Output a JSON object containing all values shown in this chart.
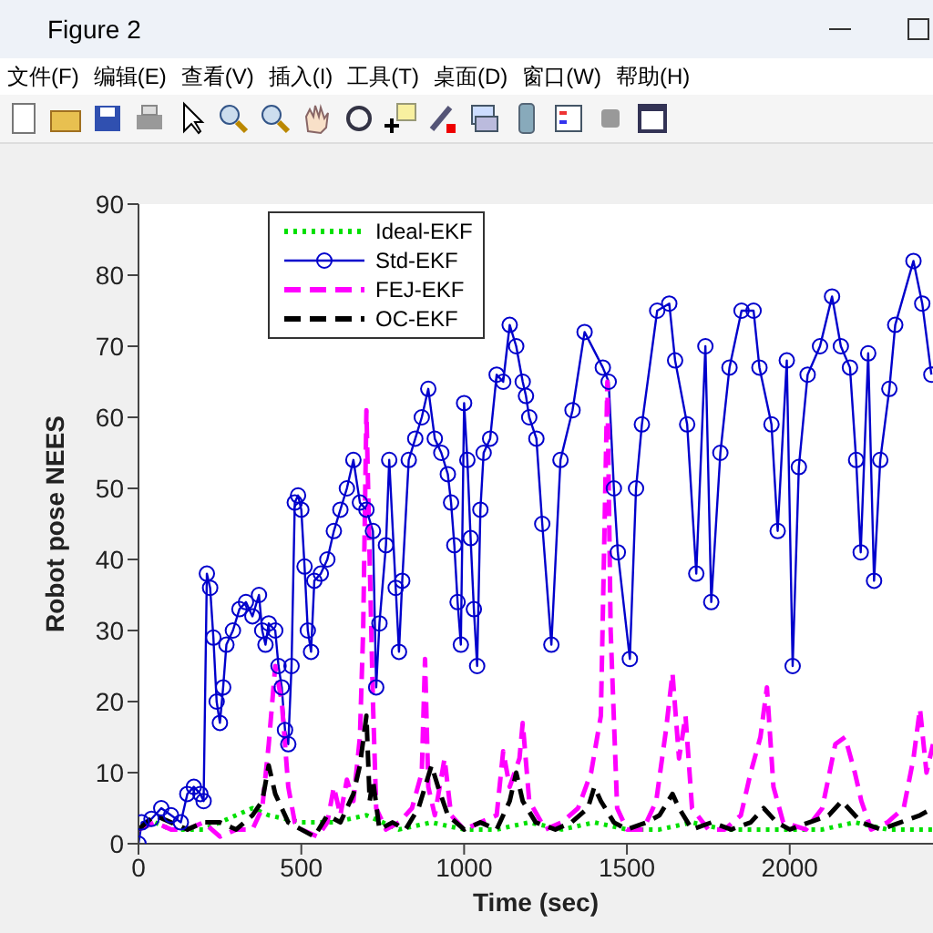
{
  "chart_data": {
    "type": "line",
    "xlabel": "Time (sec)",
    "ylabel": "Robot pose NEES",
    "annotations": [
      "Figure 2",
      "文件(F)",
      "编辑(E)",
      "查看(V)",
      "插入(I)",
      "工具(T)",
      "桌面(D)",
      "窗口(W)",
      "帮助(H)"
    ],
    "xlim": [
      0,
      2440
    ],
    "ylim": [
      0,
      90
    ],
    "xticks": [
      0,
      500,
      1000,
      1500,
      2000
    ],
    "yticks": [
      0,
      10,
      20,
      30,
      40,
      50,
      60,
      70,
      80,
      90
    ],
    "grid": false,
    "legend": "top left",
    "series": [
      {
        "name": "Ideal-EKF",
        "color": "#00e000",
        "line_style": "dotted",
        "marker": "none",
        "x": [
          0,
          50,
          100,
          200,
          300,
          350,
          400,
          500,
          600,
          700,
          800,
          900,
          1000,
          1100,
          1200,
          1300,
          1400,
          1500,
          1600,
          1700,
          1800,
          1900,
          2000,
          2100,
          2200,
          2300,
          2440
        ],
        "values": [
          2,
          3,
          2,
          2,
          4,
          5,
          4,
          3,
          3,
          4,
          2,
          3,
          2,
          2,
          3,
          2,
          3,
          2,
          2,
          3,
          2,
          2,
          2,
          2,
          3,
          2,
          2
        ]
      },
      {
        "name": "Std-EKF",
        "color": "#0000cc",
        "line_style": "solid",
        "marker": "circle",
        "x": [
          0,
          10,
          40,
          70,
          100,
          130,
          150,
          170,
          190,
          200,
          210,
          220,
          230,
          240,
          250,
          260,
          270,
          290,
          310,
          330,
          350,
          370,
          380,
          390,
          400,
          420,
          430,
          440,
          450,
          460,
          470,
          480,
          490,
          500,
          510,
          520,
          530,
          540,
          560,
          580,
          600,
          620,
          640,
          660,
          680,
          700,
          720,
          730,
          740,
          760,
          770,
          790,
          800,
          810,
          830,
          850,
          870,
          890,
          910,
          930,
          950,
          960,
          970,
          980,
          990,
          1000,
          1010,
          1020,
          1030,
          1040,
          1050,
          1060,
          1080,
          1100,
          1120,
          1140,
          1160,
          1180,
          1190,
          1200,
          1222,
          1240,
          1268,
          1296,
          1333,
          1370,
          1426,
          1444,
          1460,
          1472,
          1509,
          1528,
          1546,
          1593,
          1630,
          1648,
          1685,
          1713,
          1741,
          1759,
          1787,
          1815,
          1852,
          1889,
          1907,
          1944,
          1963,
          1991,
          2009,
          2028,
          2055,
          2093,
          2130,
          2157,
          2185,
          2204,
          2218,
          2241,
          2259,
          2278,
          2306,
          2324,
          2380,
          2407,
          2435
        ],
        "values": [
          0,
          3,
          3.5,
          5,
          4,
          3,
          7,
          8,
          7,
          6,
          38,
          36,
          29,
          20,
          17,
          22,
          28,
          30,
          33,
          34,
          32,
          35,
          30,
          28,
          31,
          30,
          25,
          22,
          16,
          14,
          25,
          48,
          49,
          47,
          39,
          30,
          27,
          37,
          38,
          40,
          44,
          47,
          50,
          54,
          48,
          47,
          44,
          22,
          31,
          42,
          54,
          36,
          27,
          37,
          54,
          57,
          60,
          64,
          57,
          55,
          52,
          48,
          42,
          34,
          28,
          62,
          54,
          43,
          33,
          25,
          47,
          55,
          57,
          66,
          65,
          73,
          70,
          65,
          63,
          60,
          57,
          45,
          28,
          54,
          61,
          72,
          67,
          65,
          50,
          41,
          26,
          50,
          59,
          75,
          76,
          68,
          59,
          38,
          70,
          34,
          55,
          67,
          75,
          75,
          67,
          59,
          44,
          68,
          25,
          53,
          66,
          70,
          77,
          70,
          67,
          54,
          41,
          69,
          37,
          54,
          64,
          73,
          82,
          76,
          66
        ]
      },
      {
        "name": "FEJ-EKF",
        "color": "#ff00ff",
        "line_style": "dashed",
        "marker": "none",
        "x": [
          0,
          50,
          100,
          150,
          200,
          250,
          300,
          350,
          380,
          400,
          420,
          440,
          460,
          480,
          500,
          550,
          580,
          600,
          620,
          640,
          660,
          680,
          690,
          700,
          710,
          720,
          730,
          760,
          800,
          840,
          870,
          880,
          890,
          910,
          940,
          960,
          1000,
          1050,
          1100,
          1120,
          1140,
          1170,
          1180,
          1200,
          1250,
          1300,
          1350,
          1390,
          1420,
          1440,
          1450,
          1470,
          1500,
          1550,
          1590,
          1620,
          1640,
          1660,
          1680,
          1700,
          1750,
          1800,
          1850,
          1880,
          1910,
          1930,
          1950,
          1980,
          2050,
          2100,
          2140,
          2170,
          2200,
          2220,
          2250,
          2300,
          2350,
          2380,
          2400,
          2420,
          2440
        ],
        "values": [
          2,
          3,
          2,
          2,
          3,
          1,
          2,
          2,
          5,
          14,
          25,
          20,
          8,
          3,
          2,
          1,
          3,
          8,
          4,
          9,
          6,
          15,
          30,
          61,
          40,
          20,
          5,
          2,
          3,
          5,
          10,
          26,
          8,
          4,
          12,
          4,
          2,
          3,
          4,
          13,
          8,
          12,
          17,
          6,
          2,
          3,
          5,
          10,
          18,
          65,
          30,
          5,
          2,
          2,
          6,
          16,
          24,
          12,
          18,
          5,
          2,
          2,
          4,
          10,
          15,
          22,
          8,
          3,
          2,
          5,
          14,
          15,
          10,
          6,
          2,
          3,
          5,
          12,
          19,
          10,
          14
        ]
      },
      {
        "name": "OC-EKF",
        "color": "#000000",
        "line_style": "dashed",
        "marker": "none",
        "x": [
          0,
          50,
          100,
          150,
          200,
          250,
          300,
          350,
          380,
          400,
          420,
          440,
          460,
          500,
          540,
          580,
          620,
          660,
          680,
          700,
          710,
          720,
          740,
          780,
          820,
          860,
          900,
          920,
          950,
          1000,
          1050,
          1100,
          1140,
          1160,
          1180,
          1220,
          1280,
          1330,
          1380,
          1400,
          1420,
          1460,
          1500,
          1560,
          1600,
          1640,
          1660,
          1700,
          1760,
          1820,
          1880,
          1920,
          1960,
          2000,
          2060,
          2120,
          2160,
          2180,
          2220,
          2280,
          2340,
          2400,
          2440
        ],
        "values": [
          2,
          4,
          3,
          2,
          3,
          3,
          2,
          4,
          6,
          11,
          7,
          5,
          3,
          2,
          1,
          4,
          3,
          7,
          11,
          18,
          6,
          9,
          2,
          3,
          2,
          5,
          11,
          8,
          4,
          2,
          3,
          2,
          6,
          10,
          6,
          3,
          2,
          3,
          5,
          8,
          6,
          3,
          2,
          3,
          4,
          7,
          5,
          2,
          3,
          2,
          3,
          5,
          3,
          2,
          3,
          4,
          6,
          5,
          3,
          2,
          3,
          4,
          5
        ]
      }
    ]
  }
}
